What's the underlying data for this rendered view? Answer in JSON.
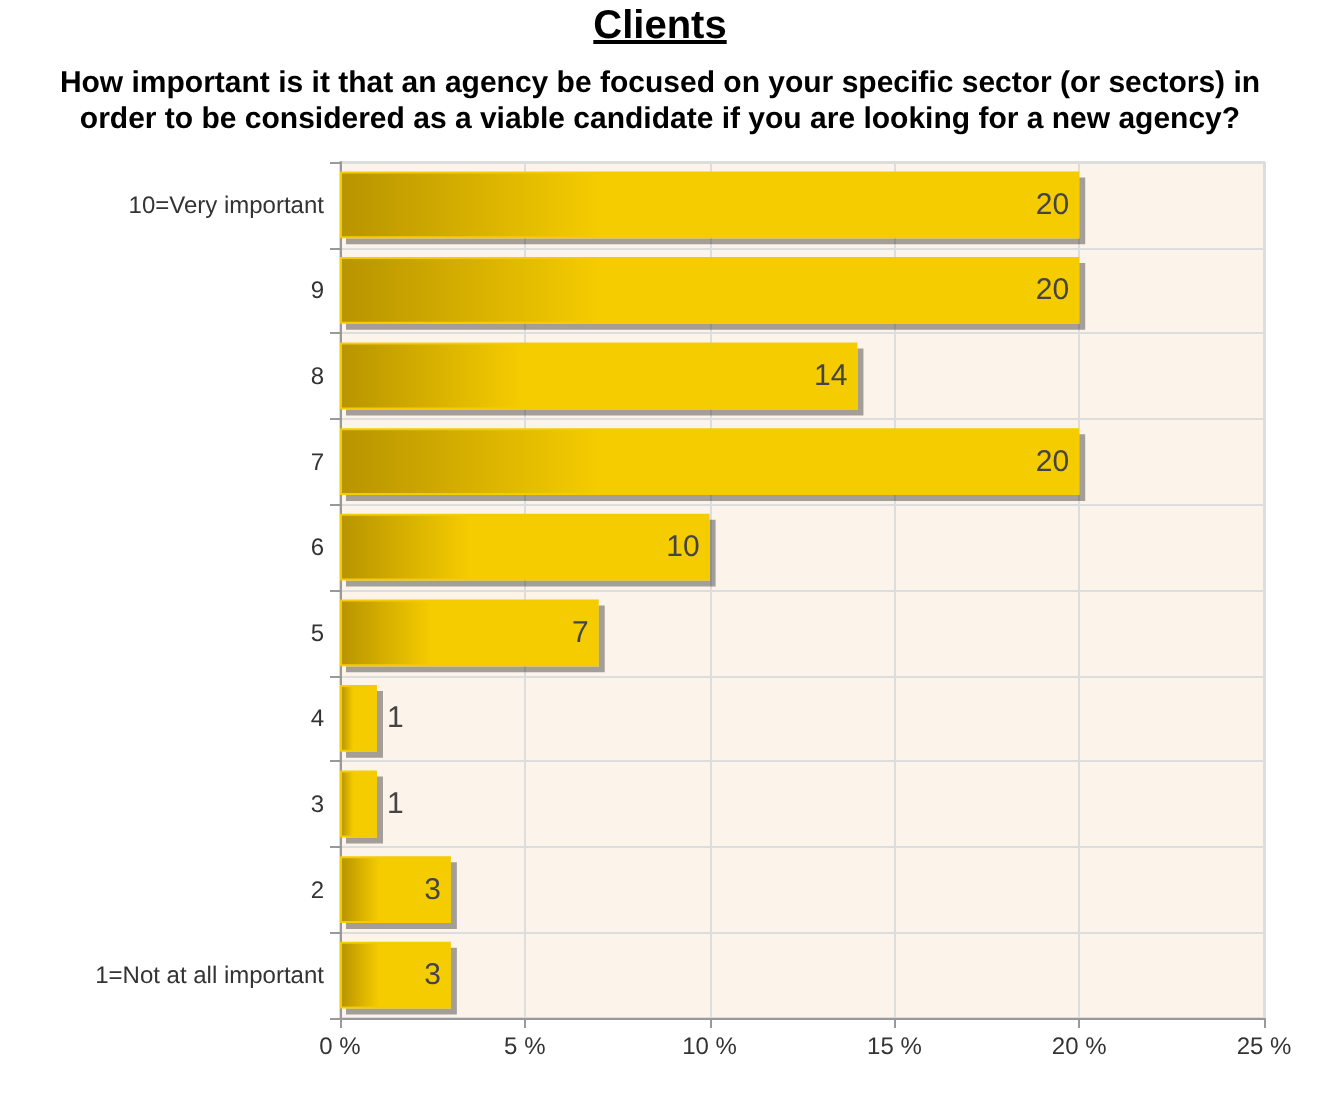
{
  "chart_data": {
    "type": "bar",
    "orientation": "horizontal",
    "title": "Clients",
    "subtitle": "How important is it that an agency be focused on your specific sector (or sectors) in order to be considered as a viable candidate if you are looking for a new agency?",
    "categories": [
      "10=Very important",
      "9",
      "8",
      "7",
      "6",
      "5",
      "4",
      "3",
      "2",
      "1=Not at all important"
    ],
    "values": [
      20,
      20,
      14,
      20,
      10,
      7,
      1,
      1,
      3,
      3
    ],
    "color": "#f5cc00",
    "xlim": [
      0,
      25
    ],
    "xticks": [
      {
        "value": 0,
        "label": "0 %"
      },
      {
        "value": 5,
        "label": "5 %"
      },
      {
        "value": 10,
        "label": "10 %"
      },
      {
        "value": 15,
        "label": "15 %"
      },
      {
        "value": 20,
        "label": "20 %"
      },
      {
        "value": 25,
        "label": "25 %"
      }
    ],
    "grid": true,
    "data_labels": true
  }
}
